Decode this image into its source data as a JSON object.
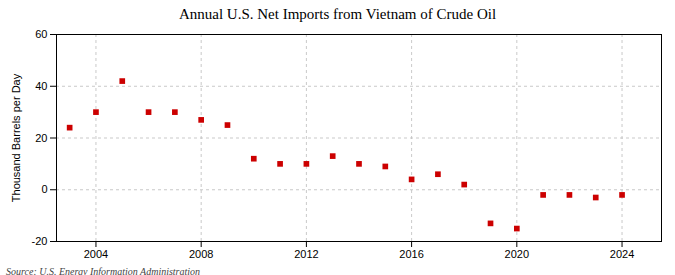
{
  "chart_data": {
    "type": "scatter",
    "title": "Annual U.S. Net Imports from Vietnam of Crude Oil",
    "ylabel": "Thousand Barrels per Day",
    "annotations": [
      "Source: U.S. Energy Information Administration"
    ],
    "x": [
      2003,
      2004,
      2005,
      2006,
      2007,
      2008,
      2009,
      2010,
      2011,
      2012,
      2013,
      2014,
      2015,
      2016,
      2017,
      2018,
      2019,
      2020,
      2021,
      2022,
      2023,
      2024
    ],
    "values": [
      24,
      30,
      42,
      30,
      30,
      27,
      25,
      12,
      10,
      10,
      13,
      10,
      9,
      4,
      6,
      2,
      -13,
      -15,
      -2,
      -2,
      -3,
      -2
    ],
    "color": "#cc0000",
    "marker": "square",
    "xlim": [
      2002.5,
      2025.5
    ],
    "xticks": [
      2004,
      2008,
      2012,
      2016,
      2020,
      2024
    ],
    "ylim": [
      -20,
      60
    ],
    "yticks": [
      -20,
      0,
      20,
      40,
      60
    ],
    "grid": true
  }
}
